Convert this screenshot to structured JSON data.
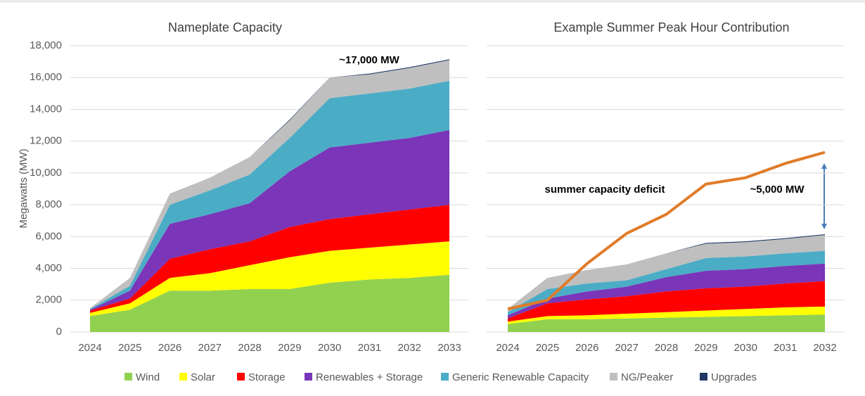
{
  "legend": [
    {
      "name": "Wind",
      "color": "#92d050"
    },
    {
      "name": "Solar",
      "color": "#ffff00"
    },
    {
      "name": "Storage",
      "color": "#ff0000"
    },
    {
      "name": "Renewables + Storage",
      "color": "#7a35b8"
    },
    {
      "name": "Generic Renewable Capacity",
      "color": "#4bacc6"
    },
    {
      "name": "NG/Peaker",
      "color": "#bfbfbf"
    },
    {
      "name": "Upgrades",
      "color": "#1f3864"
    }
  ],
  "chart_data": [
    {
      "type": "area",
      "title": "Nameplate Capacity",
      "y_label": "Megawatts (MW)",
      "x": [
        2024,
        2025,
        2026,
        2027,
        2028,
        2029,
        2030,
        2031,
        2032,
        2033
      ],
      "xlim": [
        2024,
        2033
      ],
      "ylim": [
        0,
        18000
      ],
      "yticks": [
        {
          "value": 0,
          "label": "0"
        },
        {
          "value": 2000,
          "label": "2,000"
        },
        {
          "value": 4000,
          "label": "4,000"
        },
        {
          "value": 6000,
          "label": "6,000"
        },
        {
          "value": 8000,
          "label": "8,000"
        },
        {
          "value": 10000,
          "label": "10,000"
        },
        {
          "value": 12000,
          "label": "12,000"
        },
        {
          "value": 14000,
          "label": "14,000"
        },
        {
          "value": 16000,
          "label": "16,000"
        },
        {
          "value": 18000,
          "label": "18,000"
        }
      ],
      "grid": true,
      "series": [
        {
          "values": [
            1000,
            1400,
            2600,
            2600,
            2700,
            2700,
            3100,
            3300,
            3400,
            3600
          ]
        },
        {
          "values": [
            200,
            400,
            800,
            1100,
            1500,
            2000,
            2000,
            2000,
            2100,
            2100
          ]
        },
        {
          "values": [
            150,
            300,
            1200,
            1500,
            1500,
            1900,
            2000,
            2100,
            2200,
            2300
          ]
        },
        {
          "values": [
            50,
            500,
            2200,
            2200,
            2400,
            3500,
            4500,
            4500,
            4500,
            4700
          ]
        },
        {
          "values": [
            50,
            300,
            1200,
            1500,
            1800,
            2100,
            3100,
            3100,
            3100,
            3100
          ]
        },
        {
          "values": [
            50,
            500,
            700,
            800,
            1100,
            1100,
            1300,
            1200,
            1300,
            1300
          ]
        },
        {
          "values": [
            0,
            0,
            0,
            0,
            0,
            50,
            0,
            50,
            50,
            50
          ]
        }
      ],
      "annotations": [
        "~17,000 MW"
      ]
    },
    {
      "type": "area",
      "title": "Example Summer Peak Hour Contribution",
      "x": [
        2024,
        2025,
        2026,
        2027,
        2028,
        2029,
        2030,
        2031,
        2032
      ],
      "xlim": [
        2024,
        2032
      ],
      "ylim": [
        0,
        18000
      ],
      "yticks": [
        0,
        2000,
        4000,
        6000,
        8000,
        10000,
        12000,
        14000,
        16000,
        18000
      ],
      "grid": true,
      "series": [
        {
          "values": [
            500,
            800,
            800,
            850,
            900,
            950,
            1000,
            1050,
            1100
          ]
        },
        {
          "values": [
            150,
            200,
            250,
            300,
            350,
            400,
            450,
            500,
            500
          ]
        },
        {
          "values": [
            200,
            800,
            1000,
            1100,
            1300,
            1400,
            1400,
            1500,
            1600
          ]
        },
        {
          "values": [
            200,
            300,
            500,
            600,
            900,
            1100,
            1100,
            1100,
            1100
          ]
        },
        {
          "values": [
            200,
            600,
            500,
            400,
            500,
            800,
            800,
            800,
            800
          ]
        },
        {
          "values": [
            200,
            700,
            850,
            1000,
            1000,
            900,
            900,
            900,
            1000
          ]
        },
        {
          "values": [
            0,
            0,
            0,
            0,
            0,
            50,
            50,
            50,
            50
          ]
        }
      ],
      "line": {
        "color": "#e07b28",
        "values": [
          1450,
          2000,
          4300,
          6200,
          7400,
          9300,
          9700,
          10600,
          11300
        ]
      },
      "annotations": [
        "summer capacity deficit",
        "~5,000 MW"
      ]
    }
  ]
}
